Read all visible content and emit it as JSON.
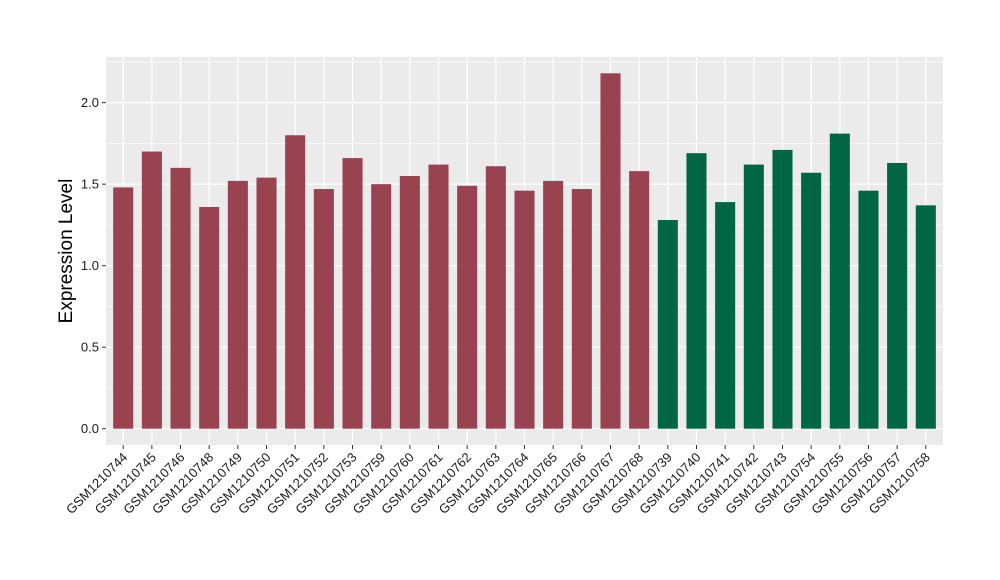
{
  "chart_data": {
    "type": "bar",
    "title": "",
    "xlabel": "",
    "ylabel": "Expression Level",
    "ylim": [
      -0.1,
      2.28
    ],
    "yticks": [
      0.0,
      0.5,
      1.0,
      1.5,
      2.0
    ],
    "ytick_labels": [
      "0.0",
      "0.5",
      "1.0",
      "1.5",
      "2.0"
    ],
    "grid": true,
    "legend": "none",
    "colors": {
      "group1": "#9a4350",
      "group2": "#006643",
      "panel": "#ebebeb",
      "grid": "#ffffff"
    },
    "categories": [
      "GSM1210744",
      "GSM1210745",
      "GSM1210746",
      "GSM1210748",
      "GSM1210749",
      "GSM1210750",
      "GSM1210751",
      "GSM1210752",
      "GSM1210753",
      "GSM1210759",
      "GSM1210760",
      "GSM1210761",
      "GSM1210762",
      "GSM1210763",
      "GSM1210764",
      "GSM1210765",
      "GSM1210766",
      "GSM1210767",
      "GSM1210768",
      "GSM1210739",
      "GSM1210740",
      "GSM1210741",
      "GSM1210742",
      "GSM1210743",
      "GSM1210754",
      "GSM1210755",
      "GSM1210756",
      "GSM1210757",
      "GSM1210758"
    ],
    "values": [
      1.48,
      1.7,
      1.6,
      1.36,
      1.52,
      1.54,
      1.8,
      1.47,
      1.66,
      1.5,
      1.55,
      1.62,
      1.49,
      1.61,
      1.46,
      1.52,
      1.47,
      2.18,
      1.58,
      1.28,
      1.69,
      1.39,
      1.62,
      1.71,
      1.57,
      1.81,
      1.46,
      1.63,
      1.37
    ],
    "groups": [
      1,
      1,
      1,
      1,
      1,
      1,
      1,
      1,
      1,
      1,
      1,
      1,
      1,
      1,
      1,
      1,
      1,
      1,
      1,
      2,
      2,
      2,
      2,
      2,
      2,
      2,
      2,
      2,
      2
    ]
  }
}
